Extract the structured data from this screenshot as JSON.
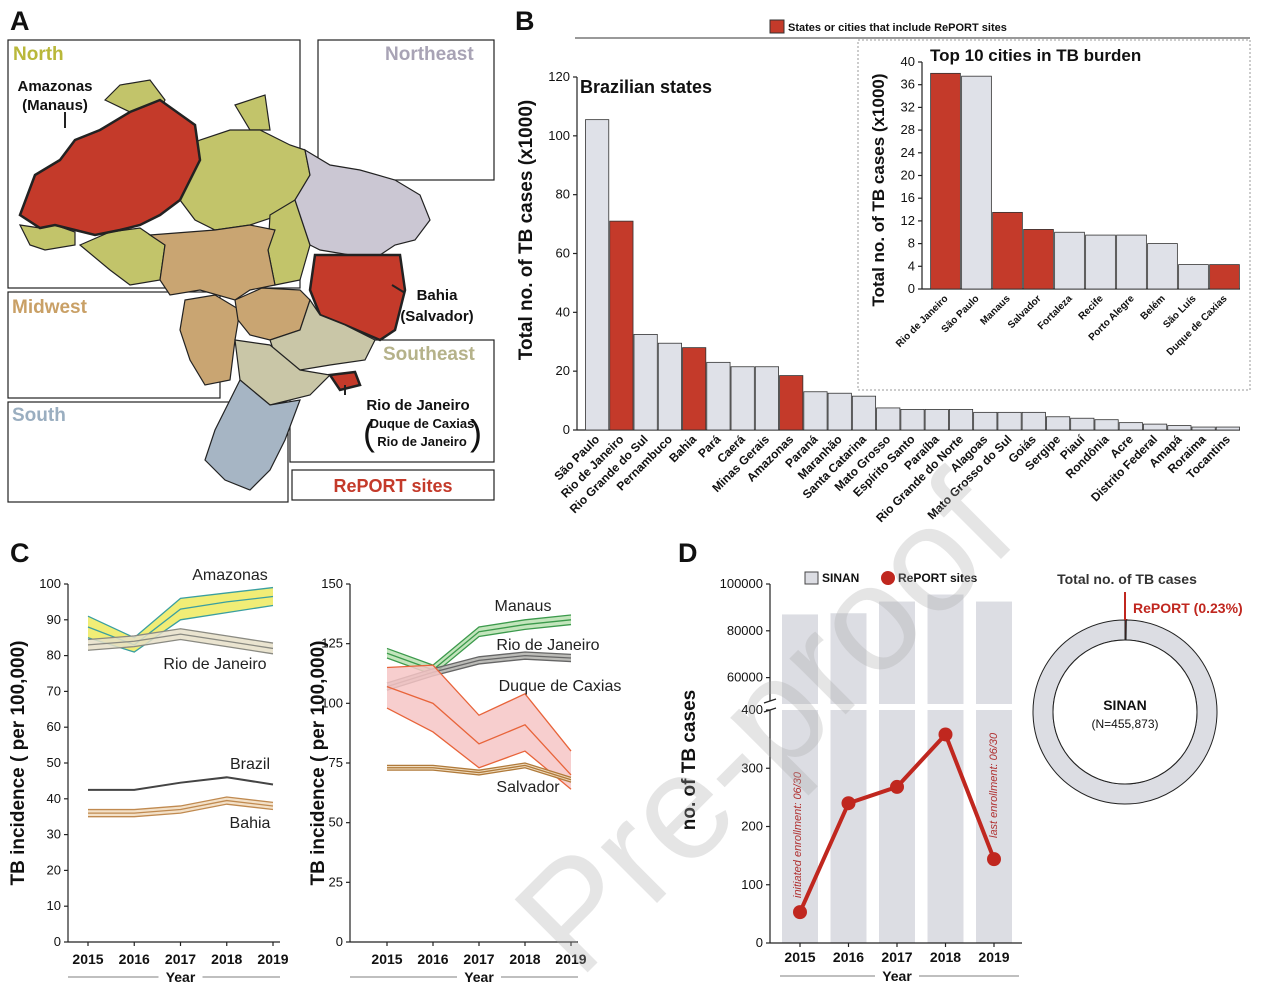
{
  "panels": [
    "A",
    "B",
    "C",
    "D"
  ],
  "watermark": "Pre-proof",
  "map": {
    "regions": [
      "North",
      "Northeast",
      "Midwest",
      "Southeast",
      "South"
    ],
    "sites": [
      [
        "Amazonas",
        "(Manaus)"
      ],
      [
        "Bahia",
        "(Salvador)"
      ],
      [
        "Rio de Janeiro",
        "Duque de Caxias",
        "Rio de Janeiro"
      ]
    ],
    "legend": "RePORT sites"
  },
  "chart_data": [
    {
      "type": "bar",
      "title": "Brazilian states",
      "ylabel": "Total no. of TB cases (x1000)",
      "legend": "States or cities that include RePORT sites",
      "legend_color": "#c43a2a",
      "categories": [
        "São Paulo",
        "Rio de Janeiro",
        "Rio Grande do Sul",
        "Pernambuco",
        "Bahia",
        "Pará",
        "Caerá",
        "Minas Gerais",
        "Amazonas",
        "Paraná",
        "Maranhão",
        "Santa Catarina",
        "Mato Grosso",
        "Espírito Santo",
        "Paraíba",
        "Rio Grande do Norte",
        "Alagoas",
        "Mato Grosso do Sul",
        "Goiás",
        "Sergipe",
        "Piauí",
        "Rondônia",
        "Acre",
        "Distrito Federal",
        "Amapá",
        "Roraima",
        "Tocantins"
      ],
      "values": [
        105.5,
        71,
        32.5,
        29.5,
        28,
        23,
        21.5,
        21.5,
        18.5,
        13,
        12.5,
        11.5,
        7.5,
        7,
        7,
        7,
        6,
        6,
        6,
        4.5,
        4,
        3.5,
        2.5,
        2,
        1.5,
        1,
        1
      ],
      "colors": [
        "#dfe1e8",
        "#c43a2a",
        "#dfe1e8",
        "#dfe1e8",
        "#c43a2a",
        "#dfe1e8",
        "#dfe1e8",
        "#dfe1e8",
        "#c43a2a",
        "#dfe1e8",
        "#dfe1e8",
        "#dfe1e8",
        "#dfe1e8",
        "#dfe1e8",
        "#dfe1e8",
        "#dfe1e8",
        "#dfe1e8",
        "#dfe1e8",
        "#dfe1e8",
        "#dfe1e8",
        "#dfe1e8",
        "#dfe1e8",
        "#dfe1e8",
        "#dfe1e8",
        "#dfe1e8",
        "#dfe1e8",
        "#dfe1e8"
      ],
      "ylim": [
        0,
        120
      ],
      "yticks": [
        0,
        20,
        40,
        60,
        80,
        100,
        120
      ]
    },
    {
      "type": "bar",
      "title": "Top 10 cities in TB burden",
      "ylabel": "Total no. of TB cases (x1000)",
      "categories": [
        "Rio de Janeiro",
        "São Paulo",
        "Manaus",
        "Salvador",
        "Fortaleza",
        "Recife",
        "Porto Alegre",
        "Belém",
        "São Luís",
        "Duque de Caxias"
      ],
      "values": [
        38,
        37.5,
        13.5,
        10.5,
        10,
        9.5,
        9.5,
        8,
        4.3,
        4.3
      ],
      "colors": [
        "#c43a2a",
        "#dfe1e8",
        "#c43a2a",
        "#c43a2a",
        "#dfe1e8",
        "#dfe1e8",
        "#dfe1e8",
        "#dfe1e8",
        "#dfe1e8",
        "#c43a2a"
      ],
      "ylim": [
        0,
        40
      ],
      "yticks": [
        0,
        4,
        8,
        12,
        16,
        20,
        24,
        28,
        32,
        36,
        40
      ]
    },
    {
      "type": "band_line",
      "xlabel": "Year",
      "ylabel": "TB incidence ( per 100,000)",
      "x": [
        2015,
        2016,
        2017,
        2018,
        2019
      ],
      "xlim": [
        2015,
        2019
      ],
      "xticks": [
        2015,
        2016,
        2017,
        2018,
        2019
      ],
      "ylim": [
        0,
        100
      ],
      "yticks": [
        0,
        10,
        20,
        30,
        40,
        50,
        60,
        70,
        80,
        90,
        100
      ],
      "series": [
        {
          "name": "Amazonas",
          "color": "#3a9fa0",
          "band_color": "#eeea5e",
          "values": [
            88,
            83,
            93,
            95,
            96.5
          ],
          "lower": [
            85,
            81,
            90,
            92,
            94
          ],
          "upper": [
            91,
            85,
            96,
            97.5,
            99
          ]
        },
        {
          "name": "Rio de Janeiro",
          "color": "#8a8a82",
          "band_color": "#e6dfc8",
          "values": [
            83,
            84,
            86,
            84,
            82
          ],
          "lower": [
            81.5,
            82.5,
            84.5,
            82.5,
            80.5
          ],
          "upper": [
            84.5,
            85.5,
            87.5,
            85.5,
            83.5
          ]
        },
        {
          "name": "Brazil",
          "color": "#444444",
          "values": [
            42.5,
            42.5,
            44.5,
            46,
            44
          ]
        },
        {
          "name": "Bahia",
          "color": "#c08a50",
          "band_color": "#f1dcc0",
          "values": [
            36,
            36,
            37,
            39.5,
            38
          ],
          "lower": [
            35,
            35,
            36,
            38.5,
            37
          ],
          "upper": [
            37,
            37,
            38,
            40.5,
            39
          ]
        }
      ]
    },
    {
      "type": "band_line",
      "xlabel": "Year",
      "ylabel": "TB incidence ( per 100,000)",
      "x": [
        2015,
        2016,
        2017,
        2018,
        2019
      ],
      "xlim": [
        2015,
        2019
      ],
      "xticks": [
        2015,
        2016,
        2017,
        2018,
        2019
      ],
      "ylim": [
        0,
        150
      ],
      "yticks": [
        0,
        25,
        50,
        75,
        100,
        125,
        150
      ],
      "series": [
        {
          "name": "Manaus",
          "color": "#3c9a4c",
          "band_color": "#b8e0b0",
          "values": [
            121,
            114,
            130,
            133,
            135
          ],
          "lower": [
            119,
            112,
            128,
            131,
            133
          ],
          "upper": [
            123,
            116,
            132,
            135,
            137
          ]
        },
        {
          "name": "Rio de Janeiro",
          "color": "#666666",
          "band_color": "#b0b0ac",
          "values": [
            107,
            113,
            118,
            120,
            119
          ],
          "lower": [
            105.5,
            111.5,
            116.5,
            118.5,
            117.5
          ],
          "upper": [
            108.5,
            114.5,
            119.5,
            121.5,
            120.5
          ]
        },
        {
          "name": "Duque de Caxias",
          "color": "#e8643a",
          "band_color": "#f6c6c6",
          "values": [
            107,
            100,
            83,
            91,
            70
          ],
          "lower": [
            98,
            88,
            73,
            80,
            64
          ],
          "upper": [
            115,
            116,
            95,
            104,
            80
          ]
        },
        {
          "name": "Salvador",
          "color": "#b07a3a",
          "band_color": "#ecd6b4",
          "values": [
            73,
            73,
            71,
            74,
            68
          ],
          "lower": [
            72,
            72,
            70,
            73,
            67
          ],
          "upper": [
            74,
            74,
            72,
            75,
            69
          ]
        }
      ]
    },
    {
      "type": "broken_bar_line",
      "xlabel": "Year",
      "ylabel": "no. of TB cases",
      "x": [
        2015,
        2016,
        2017,
        2018,
        2019
      ],
      "xticks": [
        2015,
        2016,
        2017,
        2018,
        2019
      ],
      "ylim": [
        0,
        400
      ],
      "yticks": [
        0,
        100,
        200,
        300,
        400
      ],
      "ylim_upper": [
        50000,
        100000
      ],
      "yticks_upper": [
        60000,
        80000,
        100000
      ],
      "series": [
        {
          "name": "SINAN",
          "color": "#dcdde3",
          "values": [
            87000,
            87500,
            92500,
            95500,
            92500
          ],
          "axis": "upper"
        },
        {
          "name": "RePORT sites",
          "color": "#c0271f",
          "values": [
            53,
            240,
            268,
            358,
            144
          ]
        }
      ],
      "annotations": [
        "initiated enrollment: 06/30",
        "last enrollment: 06/30"
      ]
    },
    {
      "type": "donut",
      "title": "Total no. of TB cases",
      "labels": [
        "SINAN",
        "RePORT (0.23%)"
      ],
      "values": [
        99.77,
        0.23
      ],
      "colors": [
        "#dcdde3",
        "#c0271f"
      ],
      "note": "(N=455,873)"
    }
  ]
}
